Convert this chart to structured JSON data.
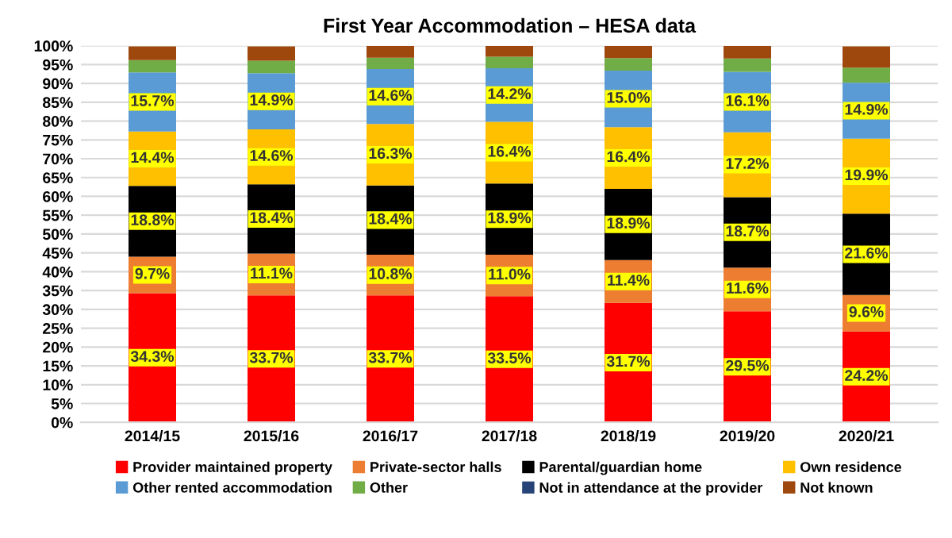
{
  "chart_data": {
    "type": "bar",
    "stacked": true,
    "title": "First Year Accommodation – HESA data",
    "categories": [
      "2014/15",
      "2015/16",
      "2016/17",
      "2017/18",
      "2018/19",
      "2019/20",
      "2020/21"
    ],
    "series": [
      {
        "name": "Provider maintained property",
        "color": "#ff0000",
        "values": [
          34.3,
          33.7,
          33.7,
          33.5,
          31.7,
          29.5,
          24.2
        ],
        "value_labels": [
          "34.3%",
          "33.7%",
          "33.7%",
          "33.5%",
          "31.7%",
          "29.5%",
          "24.2%"
        ]
      },
      {
        "name": "Private-sector halls",
        "color": "#ed7d31",
        "values": [
          9.7,
          11.1,
          10.8,
          11.0,
          11.4,
          11.6,
          9.6
        ],
        "value_labels": [
          "9.7%",
          "11.1%",
          "10.8%",
          "11.0%",
          "11.4%",
          "11.6%",
          "9.6%"
        ]
      },
      {
        "name": "Parental/guardian home",
        "color": "#000000",
        "values": [
          18.8,
          18.4,
          18.4,
          18.9,
          18.9,
          18.7,
          21.6
        ],
        "value_labels": [
          "18.8%",
          "18.4%",
          "18.4%",
          "18.9%",
          "18.9%",
          "18.7%",
          "21.6%"
        ]
      },
      {
        "name": "Own residence",
        "color": "#ffc000",
        "values": [
          14.4,
          14.6,
          16.3,
          16.4,
          16.4,
          17.2,
          19.9
        ],
        "value_labels": [
          "14.4%",
          "14.6%",
          "16.3%",
          "16.4%",
          "16.4%",
          "17.2%",
          "19.9%"
        ]
      },
      {
        "name": "Other rented accommodation",
        "color": "#5b9bd5",
        "values": [
          15.7,
          14.9,
          14.6,
          14.2,
          15.0,
          16.1,
          14.9
        ],
        "value_labels": [
          "15.7%",
          "14.9%",
          "14.6%",
          "14.2%",
          "15.0%",
          "16.1%",
          "14.9%"
        ]
      },
      {
        "name": "Other",
        "color": "#70ad47",
        "values": [
          3.3,
          3.3,
          3.0,
          3.1,
          3.3,
          3.5,
          4.0
        ]
      },
      {
        "name": "Not in attendance at the provider",
        "color": "#264478",
        "values": [
          null,
          null,
          null,
          null,
          null,
          null,
          null
        ]
      },
      {
        "name": "Not known",
        "color": "#9e480e",
        "values": [
          3.6,
          3.8,
          3.1,
          2.8,
          3.2,
          3.3,
          5.6
        ]
      }
    ],
    "ylim": [
      0,
      100
    ],
    "yticks": [
      {
        "value": 0,
        "label": "0%"
      },
      {
        "value": 5,
        "label": "5%"
      },
      {
        "value": 10,
        "label": "10%"
      },
      {
        "value": 15,
        "label": "15%"
      },
      {
        "value": 20,
        "label": "20%"
      },
      {
        "value": 25,
        "label": "25%"
      },
      {
        "value": 30,
        "label": "30%"
      },
      {
        "value": 35,
        "label": "35%"
      },
      {
        "value": 40,
        "label": "40%"
      },
      {
        "value": 45,
        "label": "45%"
      },
      {
        "value": 50,
        "label": "50%"
      },
      {
        "value": 55,
        "label": "55%"
      },
      {
        "value": 60,
        "label": "60%"
      },
      {
        "value": 65,
        "label": "65%"
      },
      {
        "value": 70,
        "label": "70%"
      },
      {
        "value": 75,
        "label": "75%"
      },
      {
        "value": 80,
        "label": "80%"
      },
      {
        "value": 85,
        "label": "85%"
      },
      {
        "value": 90,
        "label": "90%"
      },
      {
        "value": 95,
        "label": "95%"
      },
      {
        "value": 100,
        "label": "100%"
      }
    ],
    "grid": "y",
    "legend": "bottom"
  }
}
